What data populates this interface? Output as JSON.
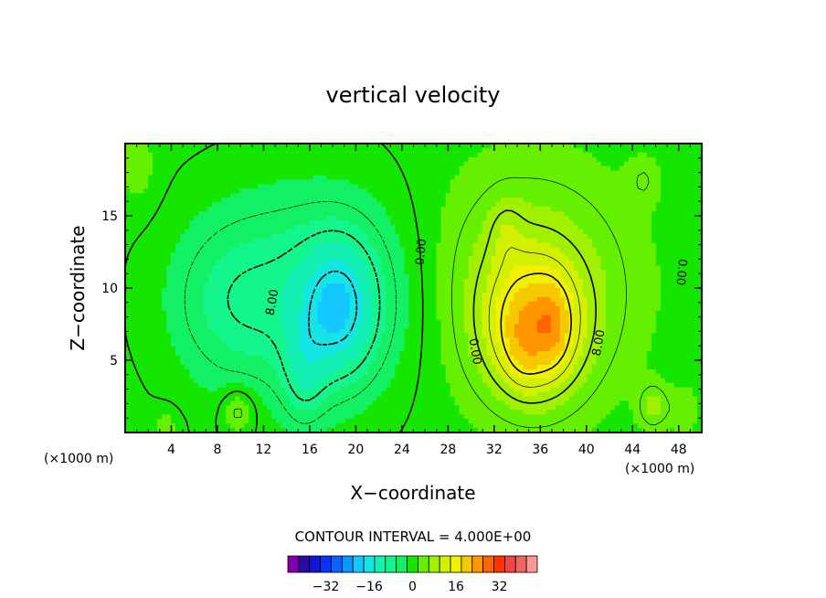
{
  "chart_data": {
    "type": "heatmap",
    "title": "vertical velocity",
    "xlabel": "X−coordinate",
    "ylabel": "Z−coordinate",
    "x_unit": "(×1000 m)",
    "y_unit": "(×1000 m)",
    "xlim": [
      0,
      50
    ],
    "ylim": [
      0,
      20
    ],
    "x_ticks": [
      4,
      8,
      12,
      16,
      20,
      24,
      28,
      32,
      36,
      40,
      44,
      48
    ],
    "y_ticks": [
      5,
      10,
      15
    ],
    "contour_interval_text": "CONTOUR INTERVAL = 4.000E+00",
    "contour_interval": 4,
    "contour_labels": [
      {
        "text": "8.00",
        "x": 12.8,
        "y": 9.0,
        "rotation": -80
      },
      {
        "text": "0.00",
        "x": 25.7,
        "y": 12.5,
        "rotation": -85
      },
      {
        "text": "0.00",
        "x": 30.3,
        "y": 5.6,
        "rotation": 80
      },
      {
        "text": "8.00",
        "x": 41.1,
        "y": 6.2,
        "rotation": -80
      },
      {
        "text": "0.00",
        "x": 48.2,
        "y": 11.1,
        "rotation": 95
      }
    ],
    "colorbar": {
      "colors": [
        "#8000aa",
        "#2a0aa0",
        "#1414d2",
        "#0a32ff",
        "#0a64ff",
        "#0a96ff",
        "#14c8ff",
        "#14e6e6",
        "#14f0b4",
        "#14f58c",
        "#14f064",
        "#14e600",
        "#64f000",
        "#a0f000",
        "#d2f000",
        "#f0f000",
        "#f5c800",
        "#ff9600",
        "#ff6400",
        "#ff3200",
        "#f04646",
        "#f06464",
        "#ff9696"
      ],
      "tick_labels": [
        "−32",
        "−16",
        "0",
        "16",
        "32"
      ],
      "tick_values": [
        -32,
        -16,
        0,
        16,
        32
      ]
    },
    "field": {
      "background": 0.5,
      "features": [
        {
          "x": 16.5,
          "y": 9.5,
          "sx": 6.5,
          "sy": 5.0,
          "amp": -9
        },
        {
          "x": 18.5,
          "y": 8.5,
          "sx": 2.2,
          "sy": 3.2,
          "amp": -12
        },
        {
          "x": 15.5,
          "y": 4.0,
          "sx": 1.3,
          "sy": 2.5,
          "amp": -6
        },
        {
          "x": 8.5,
          "y": 9.0,
          "sx": 3.5,
          "sy": 4.0,
          "amp": -4
        },
        {
          "x": 35.0,
          "y": 10.0,
          "sx": 6.0,
          "sy": 5.5,
          "amp": 9
        },
        {
          "x": 35.5,
          "y": 7.0,
          "sx": 2.8,
          "sy": 3.2,
          "amp": 14
        },
        {
          "x": 37.0,
          "y": 7.5,
          "sx": 1.0,
          "sy": 1.8,
          "amp": 6
        },
        {
          "x": 34.5,
          "y": 6.0,
          "sx": 1.0,
          "sy": 1.8,
          "amp": 3
        },
        {
          "x": 33.0,
          "y": 14.0,
          "sx": 1.0,
          "sy": 1.6,
          "amp": 3
        },
        {
          "x": 9.8,
          "y": 1.5,
          "sx": 1.0,
          "sy": 1.1,
          "amp": 6
        },
        {
          "x": 45.8,
          "y": 1.8,
          "sx": 0.9,
          "sy": 1.1,
          "amp": 6
        },
        {
          "x": 48.5,
          "y": 1.5,
          "sx": 1.0,
          "sy": 1.2,
          "amp": 3
        },
        {
          "x": 45.0,
          "y": 17.5,
          "sx": 1.0,
          "sy": 1.2,
          "amp": 3
        },
        {
          "x": 1.0,
          "y": 18.5,
          "sx": 1.2,
          "sy": 2.0,
          "amp": 3
        },
        {
          "x": 3.5,
          "y": 0.5,
          "sx": 0.8,
          "sy": 0.8,
          "amp": 3
        }
      ]
    }
  }
}
